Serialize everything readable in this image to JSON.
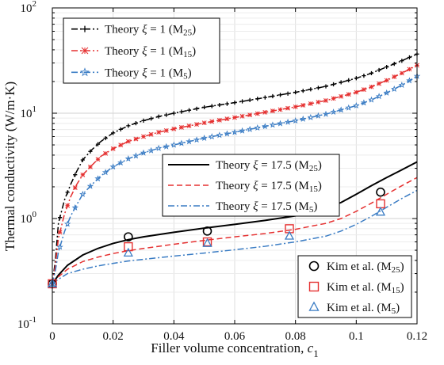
{
  "chart_data": {
    "type": "line",
    "xlabel": "Filler volume concentration,",
    "xlabel_symbol": "c",
    "xlabel_sub": "1",
    "ylabel": "Thermal conductivity (W/m·K)",
    "xlim": [
      0,
      0.12
    ],
    "ylim": [
      0.1,
      100
    ],
    "yscale": "log",
    "grid": true,
    "xticks": [
      "0",
      "0.02",
      "0.04",
      "0.06",
      "0.08",
      "0.1",
      "0.12"
    ],
    "yticks": [
      {
        "value": 0.1,
        "base": "10",
        "exp": "-1"
      },
      {
        "value": 1,
        "base": "10",
        "exp": "0"
      },
      {
        "value": 10,
        "base": "10",
        "exp": "1"
      },
      {
        "value": 100,
        "base": "10",
        "exp": "2"
      }
    ],
    "legends": [
      {
        "placement": "top-left",
        "entries": [
          {
            "prefix": "Theory",
            "sym": "ξ",
            "rest": " = 1 (M",
            "sub": "25",
            "close": ")",
            "series": 0
          },
          {
            "prefix": "Theory",
            "sym": "ξ",
            "rest": " = 1 (M",
            "sub": "15",
            "close": ")",
            "series": 1
          },
          {
            "prefix": "Theory",
            "sym": "ξ",
            "rest": " = 1 (M",
            "sub": "5",
            "close": ")",
            "series": 2
          }
        ]
      },
      {
        "placement": "center",
        "entries": [
          {
            "prefix": "Theory",
            "sym": "ξ",
            "rest": " = 17.5 (M",
            "sub": "25",
            "close": ")",
            "series": 3
          },
          {
            "prefix": "Theory",
            "sym": "ξ",
            "rest": " = 17.5 (M",
            "sub": "15",
            "close": ")",
            "series": 4
          },
          {
            "prefix": "Theory",
            "sym": "ξ",
            "rest": " = 17.5 (M",
            "sub": "5",
            "close": ")",
            "series": 5
          }
        ]
      },
      {
        "placement": "bottom-right",
        "entries": [
          {
            "prefix": "Kim et al.",
            "sym": "",
            "rest": " (M",
            "sub": "25",
            "close": ")",
            "series": 6
          },
          {
            "prefix": "Kim et al.",
            "sym": "",
            "rest": " (M",
            "sub": "15",
            "close": ")",
            "series": 7
          },
          {
            "prefix": "Kim et al.",
            "sym": "",
            "rest": " (M",
            "sub": "5",
            "close": ")",
            "series": 8
          }
        ]
      }
    ],
    "series": [
      {
        "color": "#000000",
        "style": "dashdot",
        "marker": "plus",
        "x": [
          0,
          0.001,
          0.002,
          0.004,
          0.006,
          0.008,
          0.01,
          0.013,
          0.016,
          0.02,
          0.025,
          0.03,
          0.035,
          0.04,
          0.05,
          0.06,
          0.07,
          0.08,
          0.09,
          0.1,
          0.105,
          0.11,
          0.115,
          0.12
        ],
        "y": [
          0.24,
          0.4,
          0.9,
          1.5,
          2.1,
          2.8,
          3.6,
          4.5,
          5.4,
          6.5,
          7.6,
          8.5,
          9.3,
          10.0,
          11.4,
          12.6,
          14.1,
          15.8,
          18.0,
          21.5,
          24.0,
          27.5,
          31.5,
          36.5
        ]
      },
      {
        "color": "#e53030",
        "style": "dashdot",
        "marker": "x-star",
        "x": [
          0,
          0.001,
          0.002,
          0.004,
          0.006,
          0.008,
          0.01,
          0.013,
          0.016,
          0.02,
          0.025,
          0.03,
          0.035,
          0.04,
          0.05,
          0.06,
          0.07,
          0.08,
          0.09,
          0.1,
          0.105,
          0.11,
          0.115,
          0.12
        ],
        "y": [
          0.24,
          0.36,
          0.65,
          1.1,
          1.6,
          2.1,
          2.6,
          3.2,
          3.9,
          4.6,
          5.4,
          6.0,
          6.6,
          7.1,
          8.1,
          9.1,
          10.2,
          11.5,
          13.2,
          15.8,
          17.8,
          20.5,
          24.0,
          28.5
        ]
      },
      {
        "color": "#3a7cc4",
        "style": "dashdot",
        "marker": "star",
        "x": [
          0,
          0.001,
          0.002,
          0.004,
          0.006,
          0.008,
          0.01,
          0.013,
          0.016,
          0.02,
          0.025,
          0.03,
          0.035,
          0.04,
          0.05,
          0.06,
          0.07,
          0.08,
          0.09,
          0.1,
          0.105,
          0.11,
          0.115,
          0.12
        ],
        "y": [
          0.24,
          0.32,
          0.48,
          0.75,
          1.05,
          1.35,
          1.7,
          2.1,
          2.55,
          3.1,
          3.7,
          4.2,
          4.65,
          5.0,
          5.8,
          6.6,
          7.5,
          8.5,
          9.8,
          11.8,
          13.4,
          15.6,
          18.5,
          22.5
        ]
      },
      {
        "color": "#000000",
        "style": "solid",
        "marker": "none",
        "x": [
          0,
          0.002,
          0.005,
          0.01,
          0.015,
          0.02,
          0.025,
          0.03,
          0.04,
          0.05,
          0.06,
          0.07,
          0.08,
          0.09,
          0.095,
          0.1,
          0.105,
          0.11,
          0.115,
          0.12
        ],
        "y": [
          0.24,
          0.29,
          0.36,
          0.45,
          0.52,
          0.58,
          0.63,
          0.67,
          0.74,
          0.81,
          0.88,
          0.96,
          1.06,
          1.25,
          1.42,
          1.7,
          2.05,
          2.45,
          2.9,
          3.45
        ]
      },
      {
        "color": "#e53030",
        "style": "dashed",
        "marker": "none",
        "x": [
          0,
          0.002,
          0.005,
          0.01,
          0.015,
          0.02,
          0.025,
          0.03,
          0.04,
          0.05,
          0.06,
          0.07,
          0.08,
          0.09,
          0.095,
          0.1,
          0.105,
          0.11,
          0.115,
          0.12
        ],
        "y": [
          0.24,
          0.28,
          0.33,
          0.39,
          0.43,
          0.465,
          0.495,
          0.52,
          0.57,
          0.62,
          0.67,
          0.72,
          0.79,
          0.9,
          1.0,
          1.17,
          1.4,
          1.7,
          2.05,
          2.45
        ]
      },
      {
        "color": "#3a7cc4",
        "style": "dashdot",
        "marker": "none",
        "x": [
          0,
          0.002,
          0.005,
          0.01,
          0.015,
          0.02,
          0.025,
          0.03,
          0.04,
          0.05,
          0.06,
          0.07,
          0.08,
          0.09,
          0.095,
          0.1,
          0.105,
          0.11,
          0.115,
          0.12
        ],
        "y": [
          0.24,
          0.265,
          0.3,
          0.33,
          0.355,
          0.375,
          0.395,
          0.41,
          0.44,
          0.47,
          0.505,
          0.545,
          0.6,
          0.68,
          0.76,
          0.88,
          1.05,
          1.28,
          1.55,
          1.85
        ]
      },
      {
        "color": "#000000",
        "style": "none",
        "marker": "circle",
        "x": [
          0,
          0.025,
          0.051,
          0.078,
          0.108
        ],
        "y": [
          0.24,
          0.67,
          0.76,
          1.15,
          1.78
        ]
      },
      {
        "color": "#e53030",
        "style": "none",
        "marker": "square",
        "x": [
          0,
          0.025,
          0.051,
          0.078,
          0.108
        ],
        "y": [
          0.24,
          0.54,
          0.6,
          0.8,
          1.38
        ]
      },
      {
        "color": "#3a7cc4",
        "style": "none",
        "marker": "triangle",
        "x": [
          0,
          0.025,
          0.051,
          0.078,
          0.108
        ],
        "y": [
          0.24,
          0.47,
          0.58,
          0.68,
          1.15
        ]
      }
    ]
  }
}
